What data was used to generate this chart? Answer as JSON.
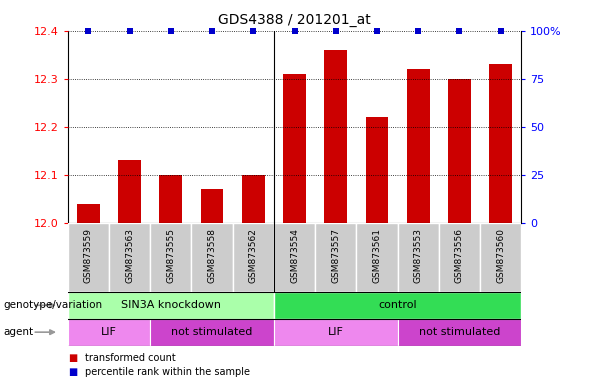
{
  "title": "GDS4388 / 201201_at",
  "samples": [
    "GSM873559",
    "GSM873563",
    "GSM873555",
    "GSM873558",
    "GSM873562",
    "GSM873554",
    "GSM873557",
    "GSM873561",
    "GSM873553",
    "GSM873556",
    "GSM873560"
  ],
  "bar_values": [
    12.04,
    12.13,
    12.1,
    12.07,
    12.1,
    12.31,
    12.36,
    12.22,
    12.32,
    12.3,
    12.33
  ],
  "bar_color": "#cc0000",
  "percentile_color": "#0000cc",
  "ylim_left": [
    12.0,
    12.4
  ],
  "yticks_left": [
    12.0,
    12.1,
    12.2,
    12.3,
    12.4
  ],
  "ylim_right": [
    0,
    100
  ],
  "yticks_right": [
    0,
    25,
    50,
    75,
    100
  ],
  "ytick_labels_right": [
    "0",
    "25",
    "50",
    "75",
    "100%"
  ],
  "groups": [
    {
      "label": "SIN3A knockdown",
      "start": 0,
      "end": 5,
      "color": "#aaffaa"
    },
    {
      "label": "control",
      "start": 5,
      "end": 11,
      "color": "#33dd55"
    }
  ],
  "agents": [
    {
      "label": "LIF",
      "start": 0,
      "end": 2,
      "color": "#ee88ee"
    },
    {
      "label": "not stimulated",
      "start": 2,
      "end": 5,
      "color": "#cc44cc"
    },
    {
      "label": "LIF",
      "start": 5,
      "end": 8,
      "color": "#ee88ee"
    },
    {
      "label": "not stimulated",
      "start": 8,
      "end": 11,
      "color": "#cc44cc"
    }
  ],
  "row_labels": [
    "genotype/variation",
    "agent"
  ],
  "legend_items": [
    {
      "color": "#cc0000",
      "label": "transformed count"
    },
    {
      "color": "#0000cc",
      "label": "percentile rank within the sample"
    }
  ],
  "separator_after": 4
}
